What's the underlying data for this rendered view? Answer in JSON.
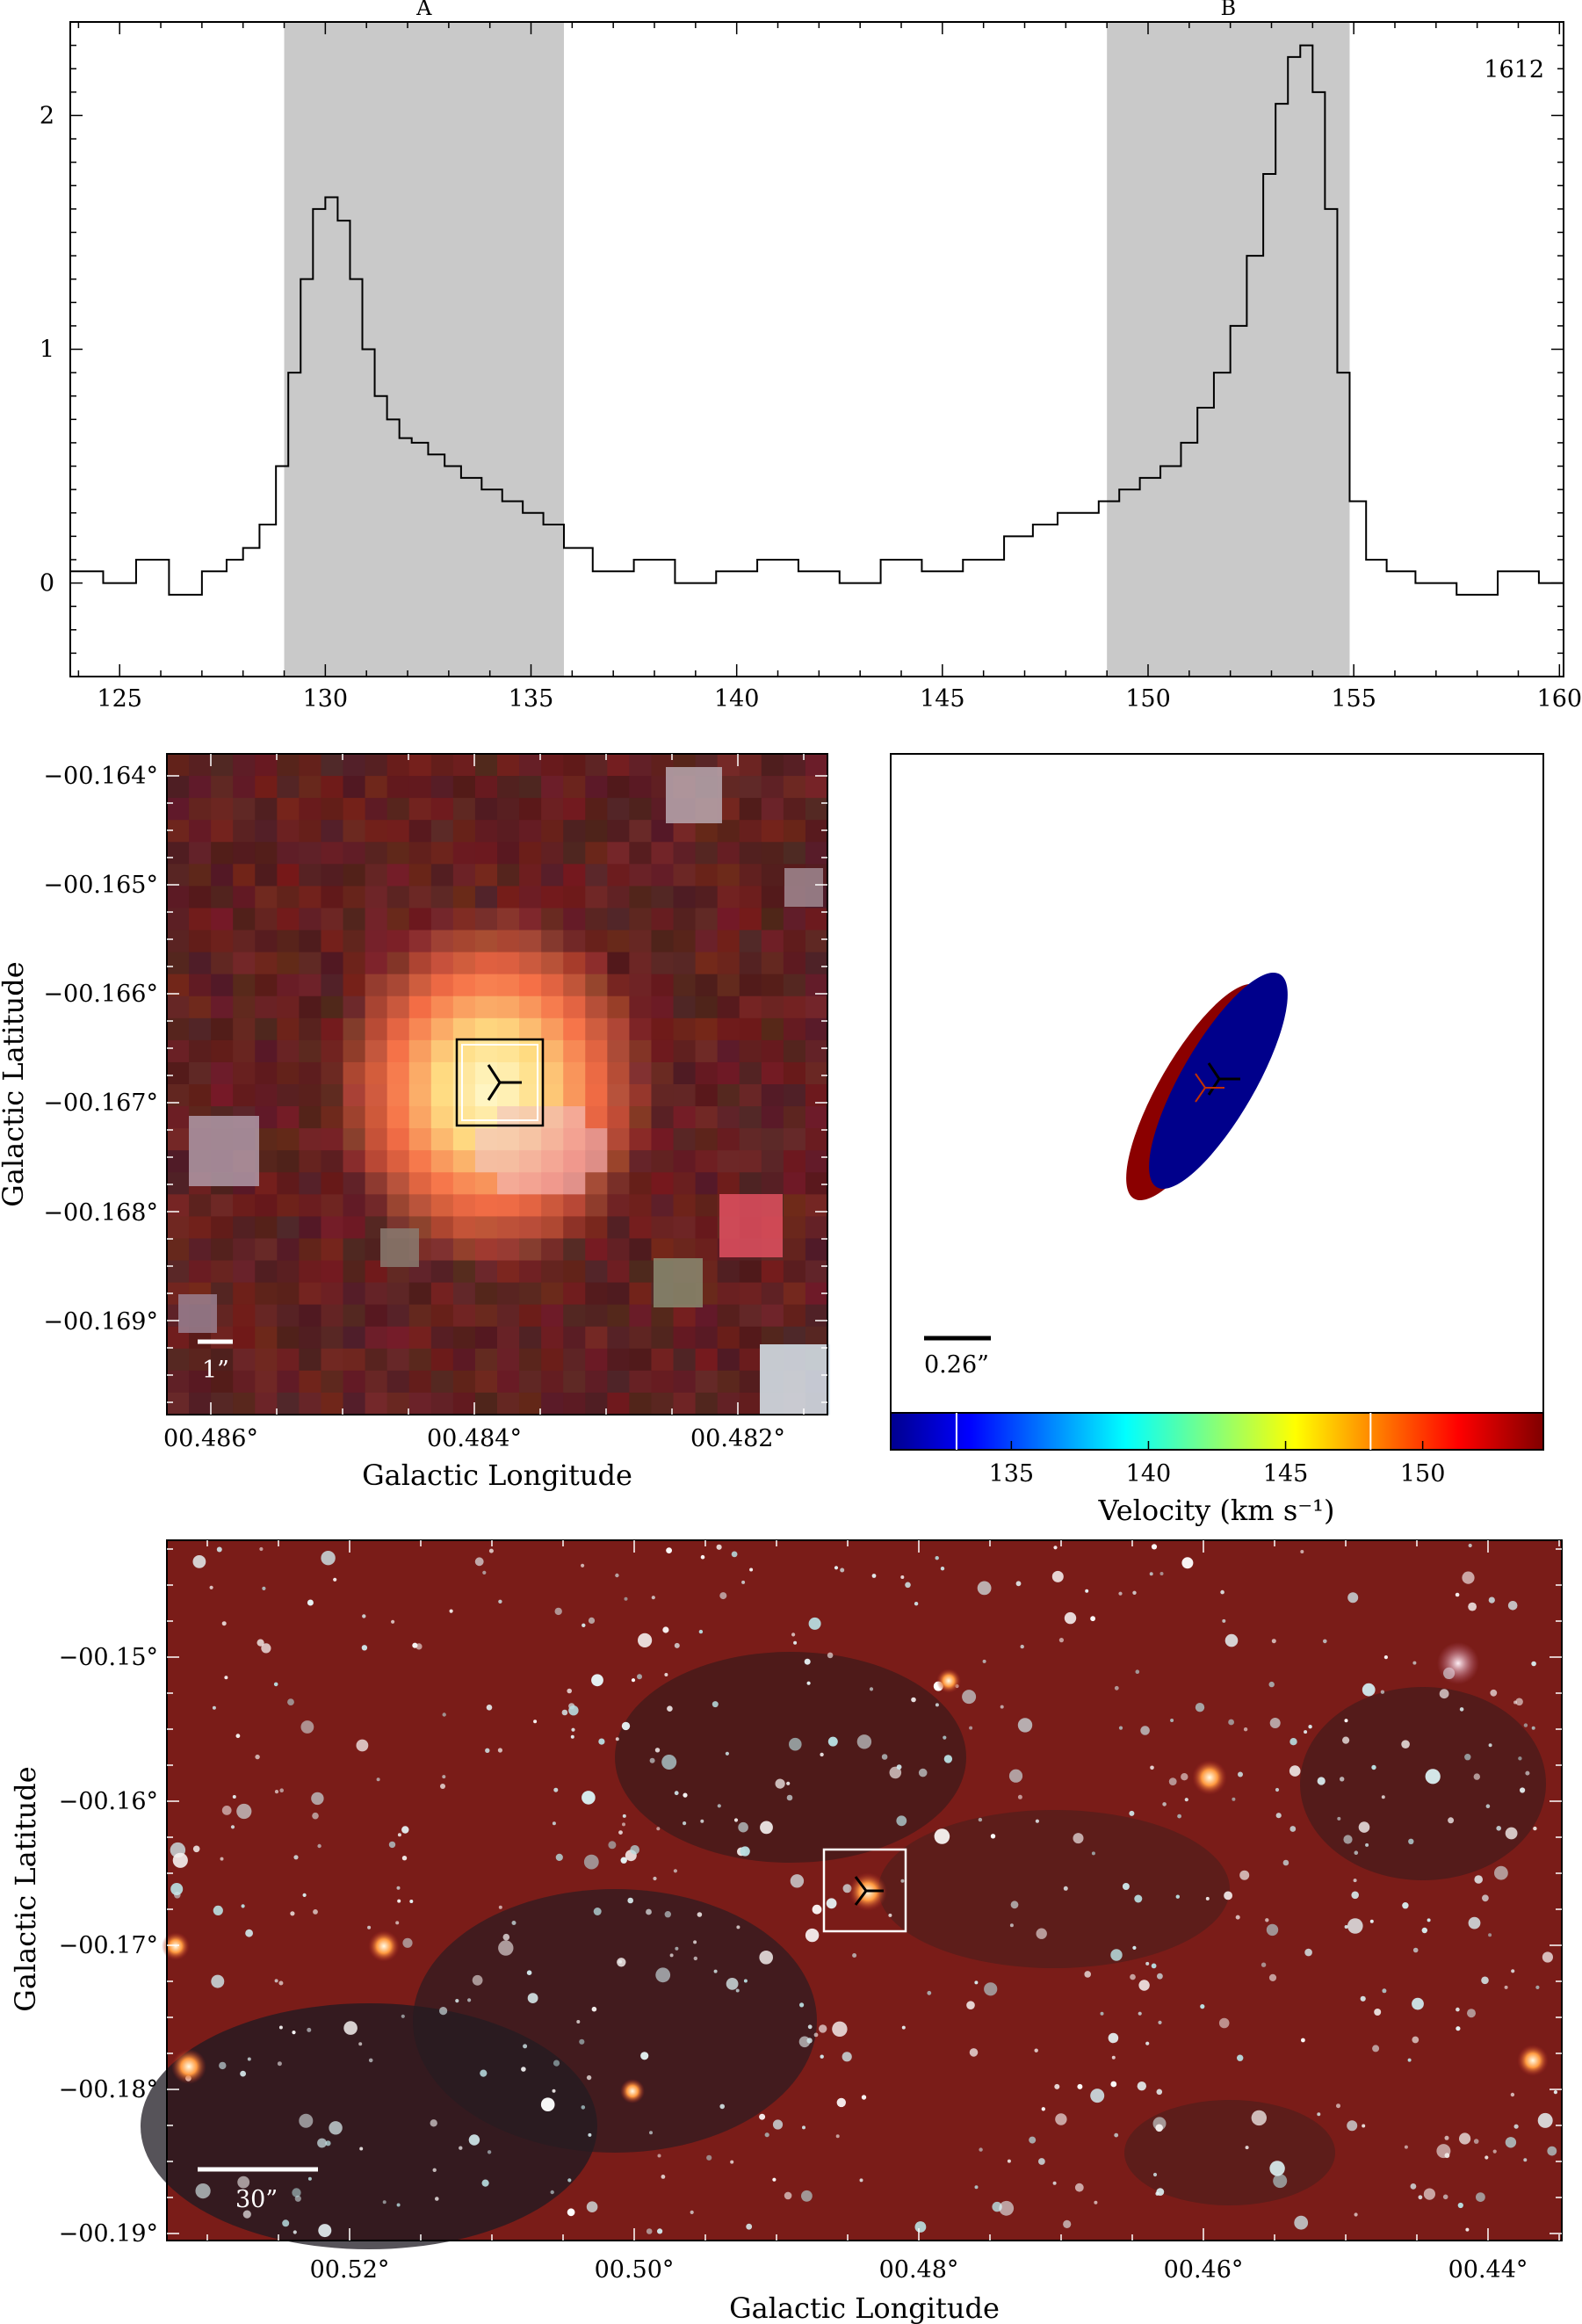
{
  "chart_data": [
    {
      "type": "line",
      "annotation": "1612",
      "xlim": [
        123.8,
        160.1
      ],
      "ylim": [
        -0.4,
        2.4
      ],
      "x_ticks": [
        125,
        130,
        135,
        140,
        145,
        150,
        155,
        160
      ],
      "y_ticks": [
        0,
        1,
        2
      ],
      "shaded_regions": [
        {
          "label": "A",
          "x": [
            129.0,
            135.8
          ]
        },
        {
          "label": "B",
          "x": [
            149.0,
            154.9
          ]
        }
      ],
      "series": [
        {
          "step": true,
          "x": [
            123.8,
            124.6,
            125.4,
            126.2,
            127.0,
            127.6,
            128.0,
            128.4,
            128.8,
            129.1,
            129.4,
            129.7,
            130.0,
            130.3,
            130.6,
            130.9,
            131.2,
            131.5,
            131.8,
            132.1,
            132.5,
            132.9,
            133.3,
            133.8,
            134.3,
            134.8,
            135.3,
            135.8,
            136.5,
            137.5,
            138.5,
            139.5,
            140.5,
            141.5,
            142.5,
            143.5,
            144.5,
            145.5,
            146.5,
            147.2,
            147.8,
            148.3,
            148.8,
            149.3,
            149.8,
            150.3,
            150.8,
            151.2,
            151.6,
            152.0,
            152.4,
            152.8,
            153.1,
            153.4,
            153.7,
            154.0,
            154.3,
            154.6,
            154.9,
            155.3,
            155.8,
            156.5,
            157.5,
            158.5,
            159.5,
            160.1
          ],
          "y": [
            0.05,
            0.0,
            0.1,
            -0.05,
            0.05,
            0.1,
            0.15,
            0.25,
            0.5,
            0.9,
            1.3,
            1.6,
            1.65,
            1.55,
            1.3,
            1.0,
            0.8,
            0.7,
            0.62,
            0.6,
            0.55,
            0.5,
            0.45,
            0.4,
            0.35,
            0.3,
            0.25,
            0.15,
            0.05,
            0.1,
            0.0,
            0.05,
            0.1,
            0.05,
            0.0,
            0.1,
            0.05,
            0.1,
            0.2,
            0.25,
            0.3,
            0.3,
            0.35,
            0.4,
            0.45,
            0.5,
            0.6,
            0.75,
            0.9,
            1.1,
            1.4,
            1.75,
            2.05,
            2.25,
            2.3,
            2.1,
            1.6,
            0.9,
            0.35,
            0.1,
            0.05,
            0.0,
            -0.05,
            0.05,
            0.0,
            0.05
          ]
        }
      ]
    },
    {
      "type": "heatmap",
      "xlabel": "Galactic Longitude",
      "ylabel": "Galactic Latitude",
      "x_ticks": [
        "00.486°",
        "00.484°",
        "00.482°"
      ],
      "y_ticks": [
        "−00.164°",
        "−00.165°",
        "−00.166°",
        "−00.167°",
        "−00.168°",
        "−00.169°"
      ],
      "scale_bar": "1”"
    },
    {
      "type": "scatter",
      "scale_bar": "0.26”",
      "colorbar_label": "Velocity (km s⁻¹)",
      "colorbar_ticks": [
        135,
        140,
        145,
        150
      ],
      "colorbar_range": [
        130.6,
        154.4
      ],
      "colorbar_marks": [
        133.0,
        148.1
      ]
    },
    {
      "type": "heatmap",
      "xlabel": "Galactic Longitude",
      "ylabel": "Galactic Latitude",
      "x_ticks": [
        "00.52°",
        "00.50°",
        "00.48°",
        "00.46°",
        "00.44°"
      ],
      "y_ticks": [
        "−00.15°",
        "−00.16°",
        "−00.17°",
        "−00.18°",
        "−00.19°"
      ],
      "scale_bar": "30”"
    }
  ],
  "colors": {
    "shade": "#c9c9c9",
    "red_ellipse": "#8b0000",
    "blue_ellipse": "#00008b",
    "map_bg": "#7a1c18"
  }
}
